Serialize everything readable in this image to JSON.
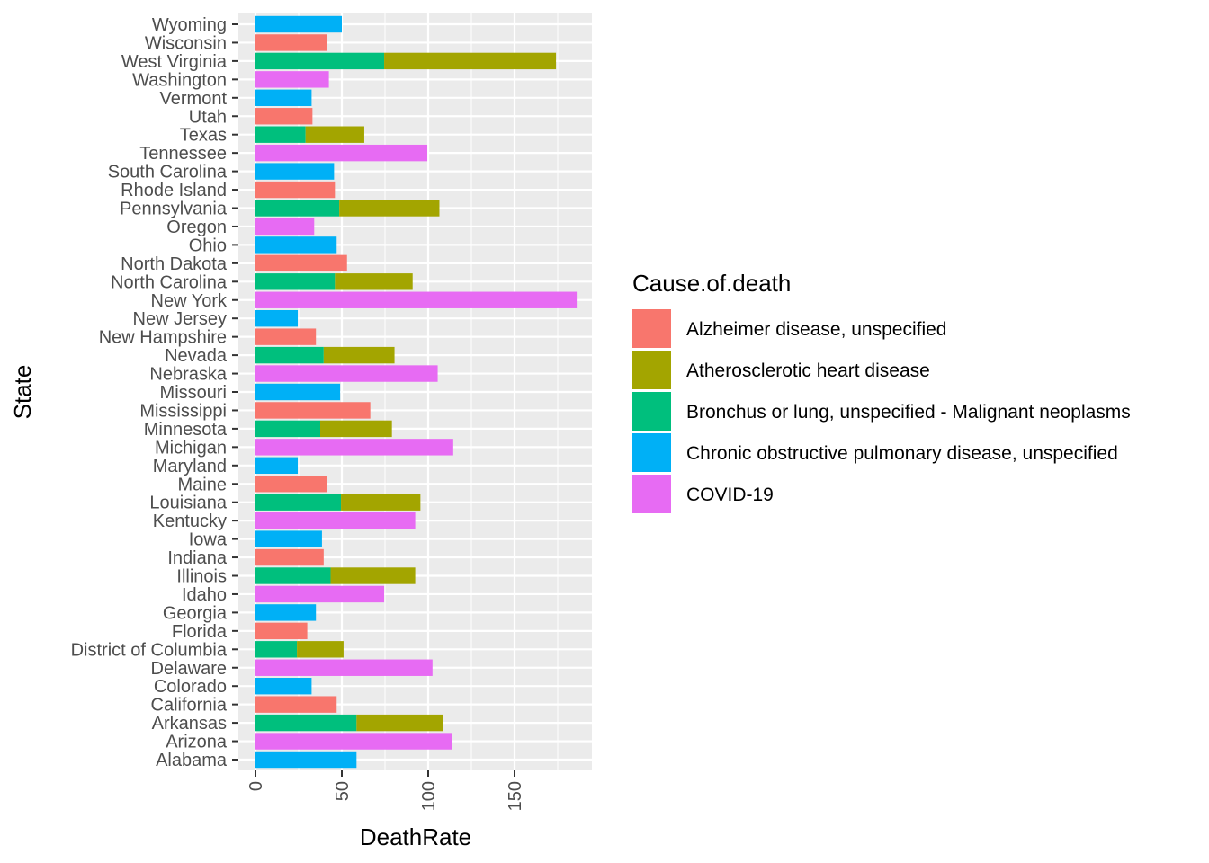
{
  "chart_data": {
    "type": "bar",
    "orientation": "horizontal",
    "stacked": true,
    "xlabel": "DeathRate",
    "ylabel": "State",
    "xlim": [
      0,
      195
    ],
    "x_ticks": [
      0,
      50,
      100,
      150
    ],
    "grid": true,
    "legend": {
      "title": "Cause.of.death",
      "placement": "right",
      "entries": [
        {
          "name": "Alzheimer disease, unspecified",
          "color": "#F8766D"
        },
        {
          "name": "Atherosclerotic heart disease",
          "color": "#A3A500"
        },
        {
          "name": "Bronchus or lung, unspecified - Malignant neoplasms",
          "color": "#00BF7D"
        },
        {
          "name": "Chronic obstructive pulmonary disease, unspecified",
          "color": "#00B0F6"
        },
        {
          "name": "COVID-19",
          "color": "#E76BF3"
        }
      ]
    },
    "categories": [
      "Alabama",
      "Arizona",
      "Arkansas",
      "California",
      "Colorado",
      "Delaware",
      "District of Columbia",
      "Florida",
      "Georgia",
      "Idaho",
      "Illinois",
      "Indiana",
      "Iowa",
      "Kentucky",
      "Louisiana",
      "Maine",
      "Maryland",
      "Michigan",
      "Minnesota",
      "Mississippi",
      "Missouri",
      "Nebraska",
      "Nevada",
      "New Hampshire",
      "New Jersey",
      "New York",
      "North Carolina",
      "North Dakota",
      "Ohio",
      "Oregon",
      "Pennsylvania",
      "Rhode Island",
      "South Carolina",
      "Tennessee",
      "Texas",
      "Utah",
      "Vermont",
      "Washington",
      "West Virginia",
      "Wisconsin",
      "Wyoming"
    ],
    "bars": [
      {
        "state": "Alabama",
        "segments": [
          {
            "cause": 3,
            "value": 58.5
          }
        ]
      },
      {
        "state": "Arizona",
        "segments": [
          {
            "cause": 4,
            "value": 114
          }
        ]
      },
      {
        "state": "Arkansas",
        "segments": [
          {
            "cause": 2,
            "value": 58.5
          },
          {
            "cause": 1,
            "value": 50
          }
        ]
      },
      {
        "state": "California",
        "segments": [
          {
            "cause": 0,
            "value": 47
          }
        ]
      },
      {
        "state": "Colorado",
        "segments": [
          {
            "cause": 3,
            "value": 32.5
          }
        ]
      },
      {
        "state": "Delaware",
        "segments": [
          {
            "cause": 4,
            "value": 102.5
          }
        ]
      },
      {
        "state": "District of Columbia",
        "segments": [
          {
            "cause": 2,
            "value": 24
          },
          {
            "cause": 1,
            "value": 27
          }
        ]
      },
      {
        "state": "Florida",
        "segments": [
          {
            "cause": 0,
            "value": 30
          }
        ]
      },
      {
        "state": "Georgia",
        "segments": [
          {
            "cause": 3,
            "value": 35
          }
        ]
      },
      {
        "state": "Idaho",
        "segments": [
          {
            "cause": 4,
            "value": 74.5
          }
        ]
      },
      {
        "state": "Illinois",
        "segments": [
          {
            "cause": 2,
            "value": 43.5
          },
          {
            "cause": 1,
            "value": 49
          }
        ]
      },
      {
        "state": "Indiana",
        "segments": [
          {
            "cause": 0,
            "value": 39.5
          }
        ]
      },
      {
        "state": "Iowa",
        "segments": [
          {
            "cause": 3,
            "value": 38.5
          }
        ]
      },
      {
        "state": "Kentucky",
        "segments": [
          {
            "cause": 4,
            "value": 92.5
          }
        ]
      },
      {
        "state": "Louisiana",
        "segments": [
          {
            "cause": 2,
            "value": 49.5
          },
          {
            "cause": 1,
            "value": 46
          }
        ]
      },
      {
        "state": "Maine",
        "segments": [
          {
            "cause": 0,
            "value": 41.5
          }
        ]
      },
      {
        "state": "Maryland",
        "segments": [
          {
            "cause": 3,
            "value": 24.5
          }
        ]
      },
      {
        "state": "Michigan",
        "segments": [
          {
            "cause": 4,
            "value": 114.5
          }
        ]
      },
      {
        "state": "Minnesota",
        "segments": [
          {
            "cause": 2,
            "value": 37.5
          },
          {
            "cause": 1,
            "value": 41.5
          }
        ]
      },
      {
        "state": "Mississippi",
        "segments": [
          {
            "cause": 0,
            "value": 66.5
          }
        ]
      },
      {
        "state": "Missouri",
        "segments": [
          {
            "cause": 3,
            "value": 49
          }
        ]
      },
      {
        "state": "Nebraska",
        "segments": [
          {
            "cause": 4,
            "value": 105.5
          }
        ]
      },
      {
        "state": "Nevada",
        "segments": [
          {
            "cause": 2,
            "value": 39.5
          },
          {
            "cause": 1,
            "value": 41
          }
        ]
      },
      {
        "state": "New Hampshire",
        "segments": [
          {
            "cause": 0,
            "value": 35
          }
        ]
      },
      {
        "state": "New Jersey",
        "segments": [
          {
            "cause": 3,
            "value": 24.5
          }
        ]
      },
      {
        "state": "New York",
        "segments": [
          {
            "cause": 4,
            "value": 186
          }
        ]
      },
      {
        "state": "North Carolina",
        "segments": [
          {
            "cause": 2,
            "value": 46
          },
          {
            "cause": 1,
            "value": 45
          }
        ]
      },
      {
        "state": "North Dakota",
        "segments": [
          {
            "cause": 0,
            "value": 53
          }
        ]
      },
      {
        "state": "Ohio",
        "segments": [
          {
            "cause": 3,
            "value": 47
          }
        ]
      },
      {
        "state": "Oregon",
        "segments": [
          {
            "cause": 4,
            "value": 34
          }
        ]
      },
      {
        "state": "Pennsylvania",
        "segments": [
          {
            "cause": 2,
            "value": 48.5
          },
          {
            "cause": 1,
            "value": 58
          }
        ]
      },
      {
        "state": "Rhode Island",
        "segments": [
          {
            "cause": 0,
            "value": 46
          }
        ]
      },
      {
        "state": "South Carolina",
        "segments": [
          {
            "cause": 3,
            "value": 45.5
          }
        ]
      },
      {
        "state": "Tennessee",
        "segments": [
          {
            "cause": 4,
            "value": 99.5
          }
        ]
      },
      {
        "state": "Texas",
        "segments": [
          {
            "cause": 2,
            "value": 29
          },
          {
            "cause": 1,
            "value": 34
          }
        ]
      },
      {
        "state": "Utah",
        "segments": [
          {
            "cause": 0,
            "value": 33
          }
        ]
      },
      {
        "state": "Vermont",
        "segments": [
          {
            "cause": 3,
            "value": 32.5
          }
        ]
      },
      {
        "state": "Washington",
        "segments": [
          {
            "cause": 4,
            "value": 42.5
          }
        ]
      },
      {
        "state": "West Virginia",
        "segments": [
          {
            "cause": 2,
            "value": 74.5
          },
          {
            "cause": 1,
            "value": 99.5
          }
        ]
      },
      {
        "state": "Wisconsin",
        "segments": [
          {
            "cause": 0,
            "value": 41.5
          }
        ]
      },
      {
        "state": "Wyoming",
        "segments": [
          {
            "cause": 3,
            "value": 50
          }
        ]
      }
    ]
  }
}
